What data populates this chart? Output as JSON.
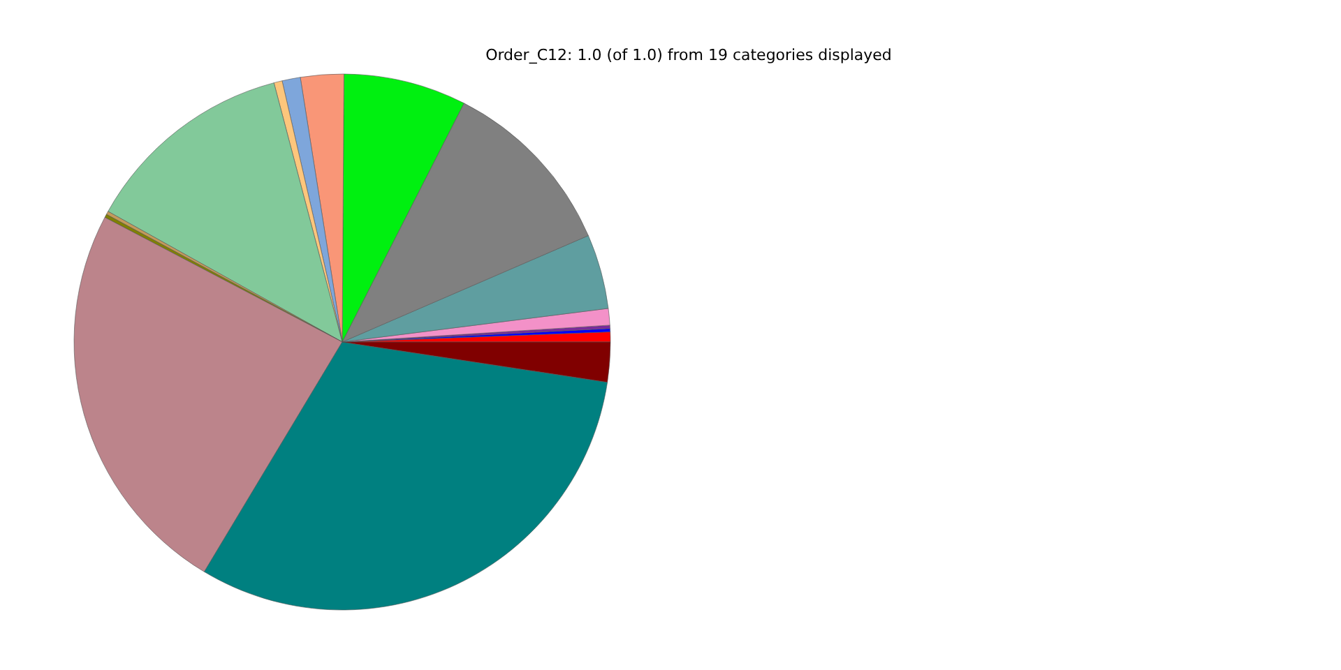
{
  "chart_data": {
    "type": "pie",
    "title": "Order_C12: 1.0 (of 1.0) from 19 categories displayed",
    "categories": [
      null,
      null,
      null,
      null,
      null,
      null,
      null,
      null,
      null,
      null,
      null,
      null,
      null,
      null,
      null,
      null
    ],
    "values": [
      0.6,
      0.2,
      0.2,
      1.0,
      4.5,
      11.0,
      7.4,
      2.6,
      1.1,
      0.5,
      12.8,
      0.2,
      0.2,
      24.1,
      31.2,
      2.4
    ],
    "colors": [
      "#ff0000",
      "#0000ff",
      "#7b2a9c",
      "#f391c8",
      "#5f9ea0",
      "#808080",
      "#00f010",
      "#f99677",
      "#7ea6db",
      "#fdc67c",
      "#82c99a",
      "#c49a5a",
      "#808000",
      "#bc848b",
      "#008080",
      "#800000"
    ],
    "legend": false
  }
}
